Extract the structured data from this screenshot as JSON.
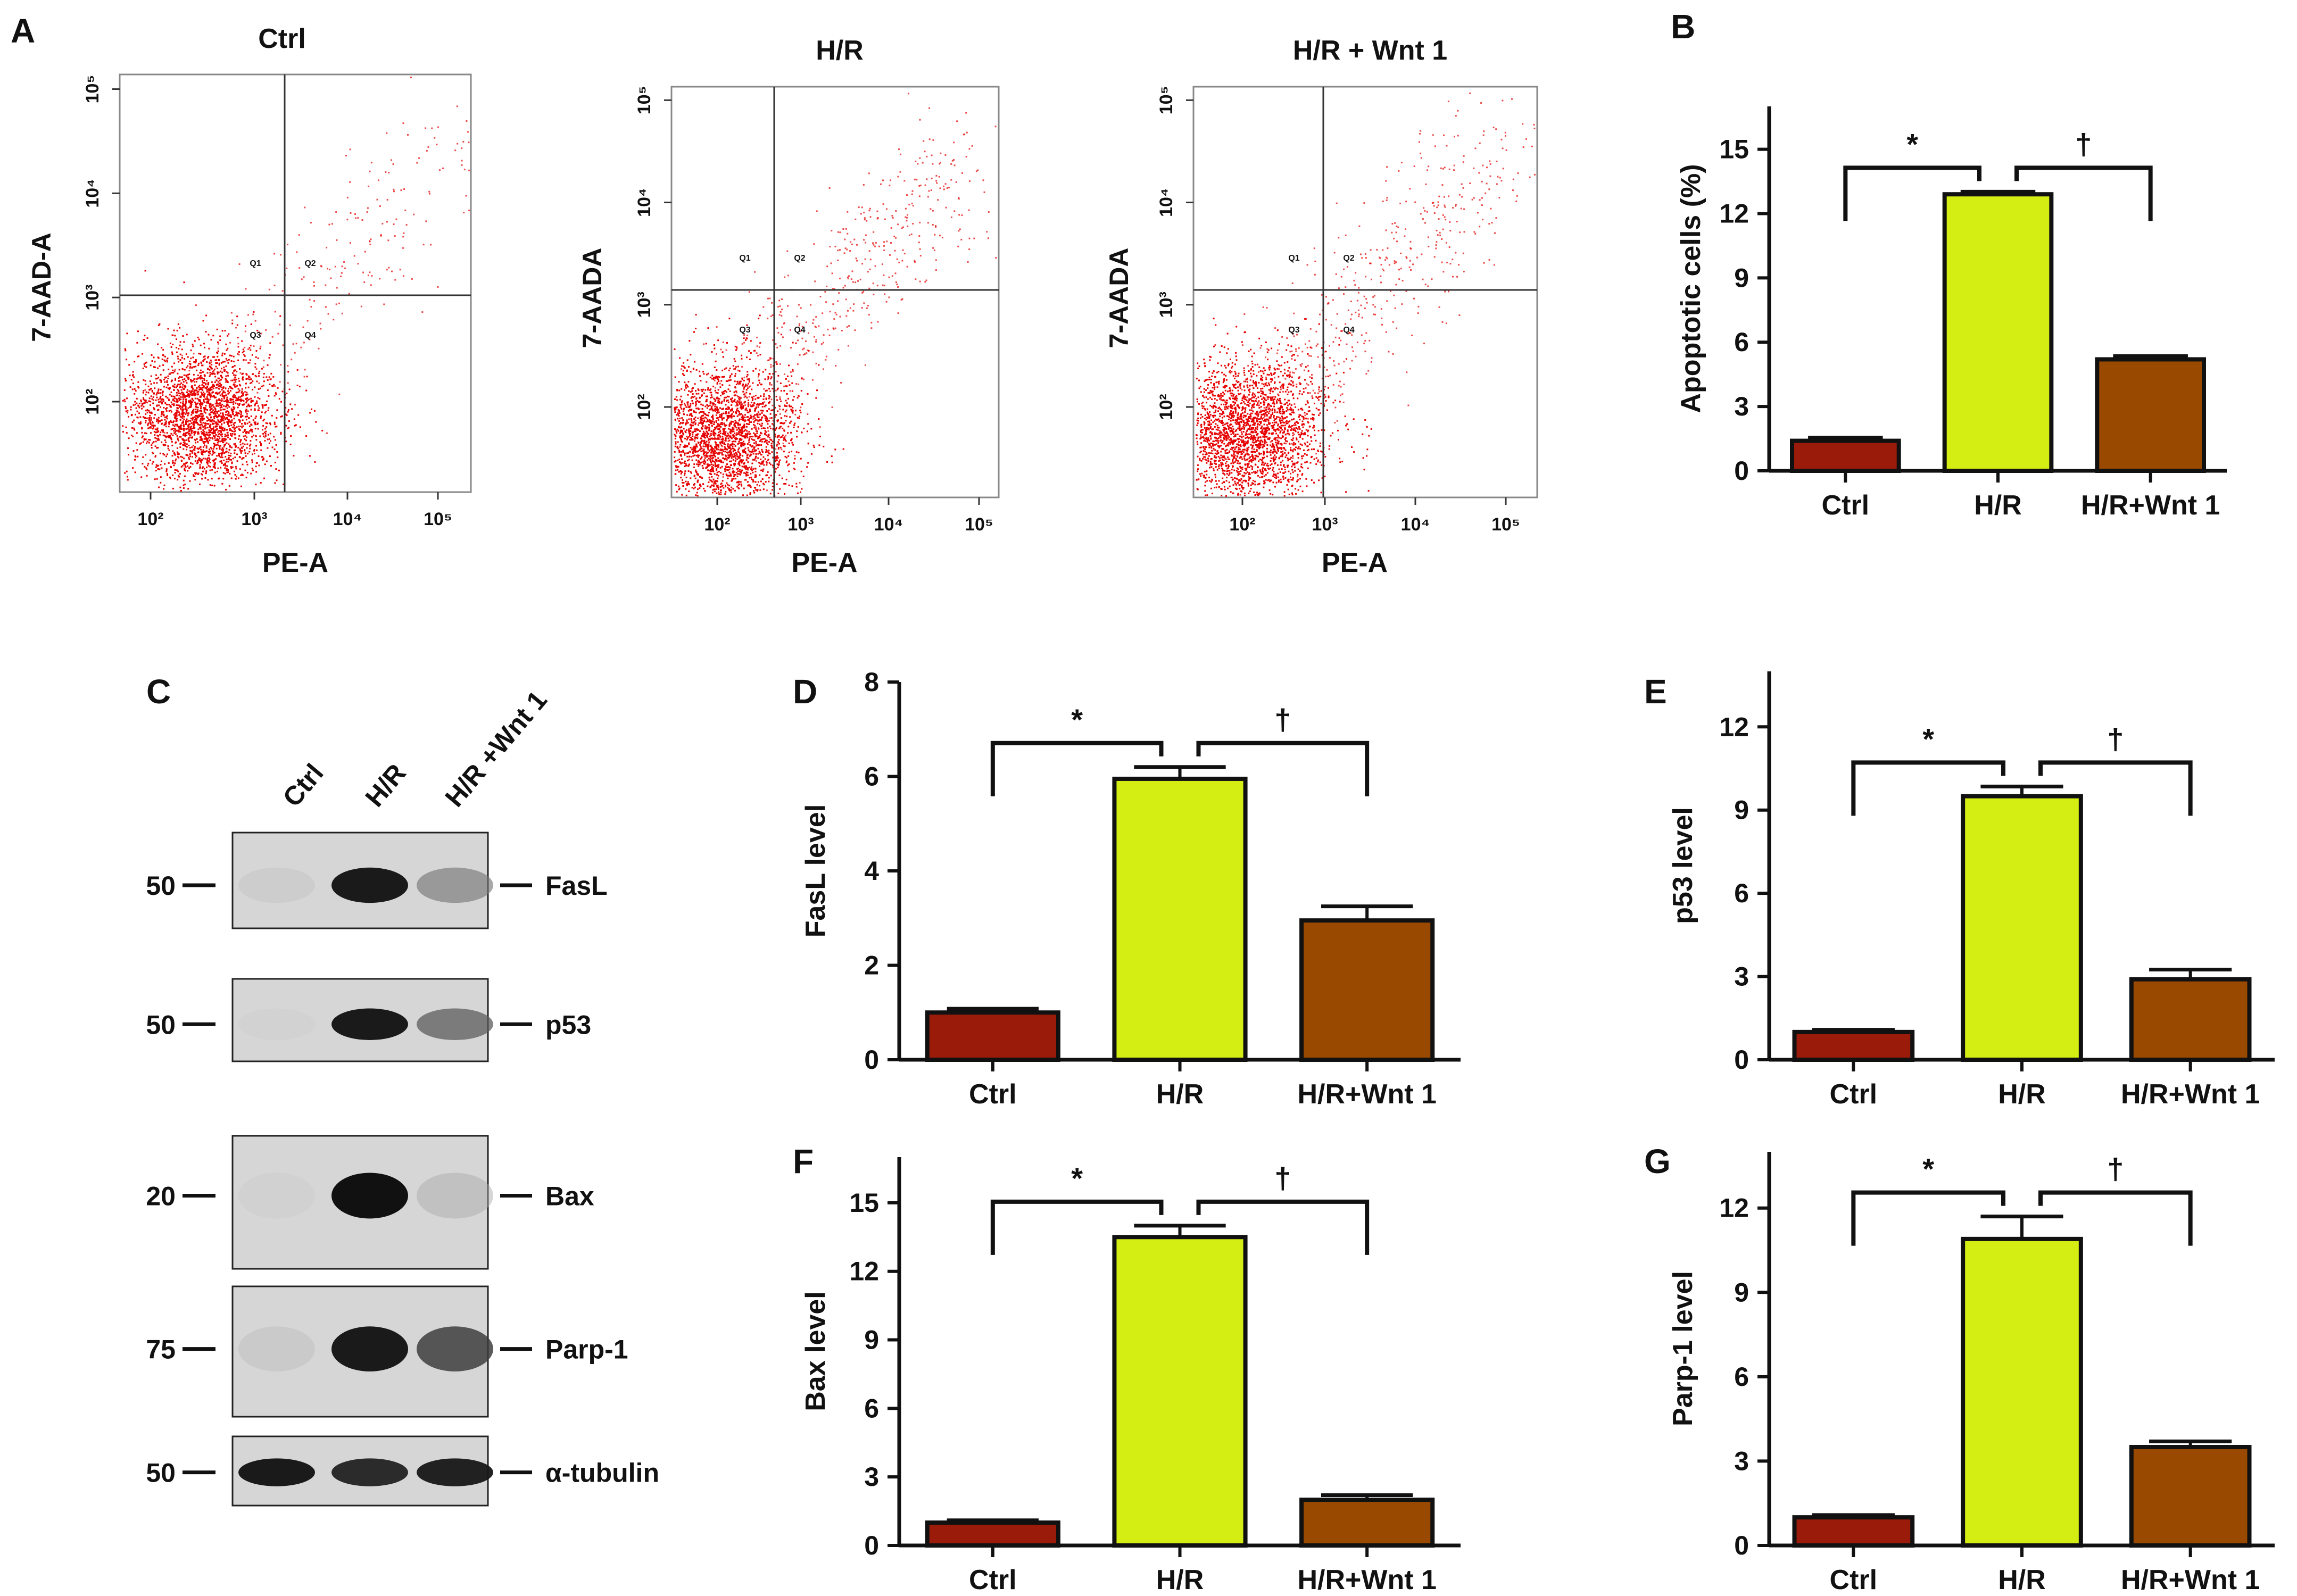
{
  "figure": {
    "panel_letters": [
      "A",
      "B",
      "C",
      "D",
      "E",
      "F",
      "G"
    ]
  },
  "colors": {
    "ctrl": "#9a1b0a",
    "hr": "#d4ee14",
    "wnt": "#9a4a00",
    "scatter": "#e60000",
    "axis": "#111111"
  },
  "flow": [
    {
      "id": "ctrl",
      "title": "Ctrl",
      "ylabel": "7-AAD-A",
      "xlabel": "PE-A",
      "ticks": [
        "10²",
        "10³",
        "10⁴",
        "10⁵"
      ],
      "quadrants": [
        "Q1",
        "Q2",
        "Q3",
        "Q4"
      ]
    },
    {
      "id": "hr",
      "title": "H/R",
      "ylabel": "7-AADA",
      "xlabel": "PE-A",
      "ticks": [
        "10²",
        "10³",
        "10⁴",
        "10⁵"
      ],
      "quadrants": [
        "Q1",
        "Q2",
        "Q3",
        "Q4"
      ]
    },
    {
      "id": "wnt",
      "title": "H/R + Wnt 1",
      "ylabel": "7-AADA",
      "xlabel": "PE-A",
      "ticks": [
        "10²",
        "10³",
        "10⁴",
        "10⁵"
      ],
      "quadrants": [
        "Q1",
        "Q2",
        "Q3",
        "Q4"
      ]
    }
  ],
  "blot": {
    "lanes": [
      "Ctrl",
      "H/R",
      "H/R +Wnt 1"
    ],
    "rows": [
      {
        "marker": "50",
        "protein": "FasL",
        "intensity": [
          0.08,
          0.95,
          0.45
        ]
      },
      {
        "marker": "50",
        "protein": "p53",
        "intensity": [
          0.03,
          0.95,
          0.6
        ]
      },
      {
        "marker": "20",
        "protein": "Bax",
        "intensity": [
          0.05,
          0.98,
          0.2
        ]
      },
      {
        "marker": "75",
        "protein": "Parp-1",
        "intensity": [
          0.12,
          0.95,
          0.75
        ]
      },
      {
        "marker": "50",
        "protein": "α-tubulin",
        "intensity": [
          0.95,
          0.9,
          0.93
        ]
      }
    ]
  },
  "chart_data": [
    {
      "panel": "B",
      "type": "bar",
      "categories": [
        "Ctrl",
        "H/R",
        "H/R+Wnt 1"
      ],
      "values": [
        1.4,
        12.9,
        5.2
      ],
      "errors": [
        0.15,
        0.12,
        0.15
      ],
      "title": "",
      "xlabel": "",
      "ylabel": "Apoptotic cells (%)",
      "ylim": [
        0,
        17
      ],
      "yticks": [
        0,
        3,
        6,
        9,
        12,
        15
      ],
      "significance": [
        {
          "from": 0,
          "to": 1,
          "label": "*"
        },
        {
          "from": 1,
          "to": 2,
          "label": "†"
        }
      ]
    },
    {
      "panel": "D",
      "type": "bar",
      "categories": [
        "Ctrl",
        "H/R",
        "H/R+Wnt 1"
      ],
      "values": [
        1.0,
        5.95,
        2.95
      ],
      "errors": [
        0.08,
        0.25,
        0.3
      ],
      "title": "",
      "xlabel": "",
      "ylabel": "FasL level",
      "ylim": [
        0,
        8
      ],
      "yticks": [
        0,
        2,
        4,
        6,
        8
      ],
      "significance": [
        {
          "from": 0,
          "to": 1,
          "label": "*"
        },
        {
          "from": 1,
          "to": 2,
          "label": "†"
        }
      ]
    },
    {
      "panel": "E",
      "type": "bar",
      "categories": [
        "Ctrl",
        "H/R",
        "H/R+Wnt 1"
      ],
      "values": [
        1.0,
        9.5,
        2.9
      ],
      "errors": [
        0.08,
        0.35,
        0.35
      ],
      "title": "",
      "xlabel": "",
      "ylabel": "p53 level",
      "ylim": [
        0,
        14
      ],
      "yticks": [
        0,
        3,
        6,
        9,
        12
      ],
      "significance": [
        {
          "from": 0,
          "to": 1,
          "label": "*"
        },
        {
          "from": 1,
          "to": 2,
          "label": "†"
        }
      ]
    },
    {
      "panel": "F",
      "type": "bar",
      "categories": [
        "Ctrl",
        "H/R",
        "H/R+Wnt 1"
      ],
      "values": [
        1.0,
        13.5,
        2.0
      ],
      "errors": [
        0.1,
        0.5,
        0.2
      ],
      "title": "",
      "xlabel": "",
      "ylabel": "Bax level",
      "ylim": [
        0,
        17
      ],
      "yticks": [
        0,
        3,
        6,
        9,
        12,
        15
      ],
      "significance": [
        {
          "from": 0,
          "to": 1,
          "label": "*"
        },
        {
          "from": 1,
          "to": 2,
          "label": "†"
        }
      ]
    },
    {
      "panel": "G",
      "type": "bar",
      "categories": [
        "Ctrl",
        "H/R",
        "H/R+Wnt 1"
      ],
      "values": [
        1.0,
        10.9,
        3.5
      ],
      "errors": [
        0.08,
        0.8,
        0.2
      ],
      "title": "",
      "xlabel": "",
      "ylabel": "Parp-1 level",
      "ylim": [
        0,
        14
      ],
      "yticks": [
        0,
        3,
        6,
        9,
        12
      ],
      "significance": [
        {
          "from": 0,
          "to": 1,
          "label": "*"
        },
        {
          "from": 1,
          "to": 2,
          "label": "†"
        }
      ]
    }
  ]
}
